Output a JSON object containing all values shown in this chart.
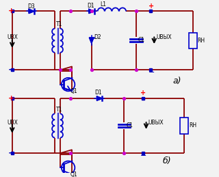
{
  "bg_color": "#f2f2f2",
  "wire_color": "#8B0000",
  "component_color": "#0000CC",
  "node_color": "#CC00CC",
  "plus_color": "#FF0000",
  "minus_color": "#0000BB",
  "label_color": "#000000",
  "title_a": "а)",
  "title_b": "б)",
  "uvx_label": "UВХ",
  "uvyx_label": "UВЫХ",
  "rh_label": "RН",
  "c1_label": "C1",
  "l1_label": "L1",
  "t1_label": "T1",
  "q1_label": "Q1",
  "d1_label": "D1",
  "d2_label": "D2",
  "d3_label": "D3"
}
